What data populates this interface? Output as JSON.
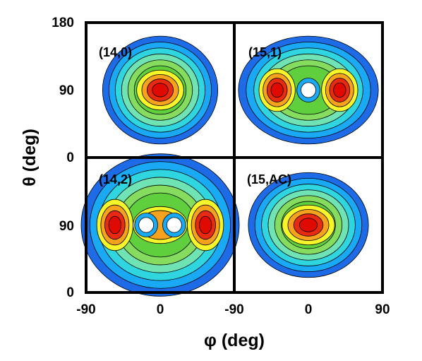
{
  "chart_data": {
    "type": "heatmap",
    "xlabel": "φ (deg)",
    "ylabel": "θ (deg)",
    "xlim": [
      -90,
      90
    ],
    "ylim": [
      0,
      180
    ],
    "x_ticks_left": [
      "-90",
      "0"
    ],
    "x_ticks_right": [
      "-90",
      "0",
      "90"
    ],
    "y_ticks_top": [
      "180",
      "90",
      "0"
    ],
    "y_ticks_bottom": [
      "90",
      "0"
    ],
    "panels": [
      {
        "label": "(14,0)",
        "position": "top-left",
        "blobs": [
          {
            "phi": 0,
            "theta": 90,
            "a": 52,
            "b": 28,
            "peak": 1.0
          }
        ]
      },
      {
        "label": "(15,1)",
        "position": "top-right",
        "blobs": [
          {
            "phi": -38,
            "theta": 90,
            "a": 40,
            "b": 30,
            "peak": 1.0
          },
          {
            "phi": 38,
            "theta": 90,
            "a": 40,
            "b": 30,
            "peak": 1.0
          }
        ],
        "hole": {
          "phi": 0,
          "theta": 90
        }
      },
      {
        "label": "(14,2)",
        "position": "bottom-left",
        "blobs": [
          {
            "phi": -55,
            "theta": 90,
            "a": 40,
            "b": 36,
            "peak": 1.0
          },
          {
            "phi": 55,
            "theta": 90,
            "a": 40,
            "b": 36,
            "peak": 1.0
          },
          {
            "phi": 0,
            "theta": 90,
            "a": 60,
            "b": 26,
            "peak": 0.55
          }
        ],
        "holes": [
          {
            "phi": -17,
            "theta": 90
          },
          {
            "phi": 17,
            "theta": 90
          }
        ]
      },
      {
        "label": "(15,AC)",
        "position": "bottom-right",
        "blobs": [
          {
            "phi": 0,
            "theta": 90,
            "a": 58,
            "b": 28,
            "peak": 1.0
          }
        ]
      }
    ],
    "colors": {
      "levels": [
        "#1e6be8",
        "#19a9f5",
        "#2fd6e0",
        "#6fe3b4",
        "#86dc5f",
        "#5fcf3d",
        "#f5f52a",
        "#f7a21c",
        "#e82b10",
        "#e00a00"
      ],
      "frame": "#000000",
      "contour": "#000000"
    }
  }
}
